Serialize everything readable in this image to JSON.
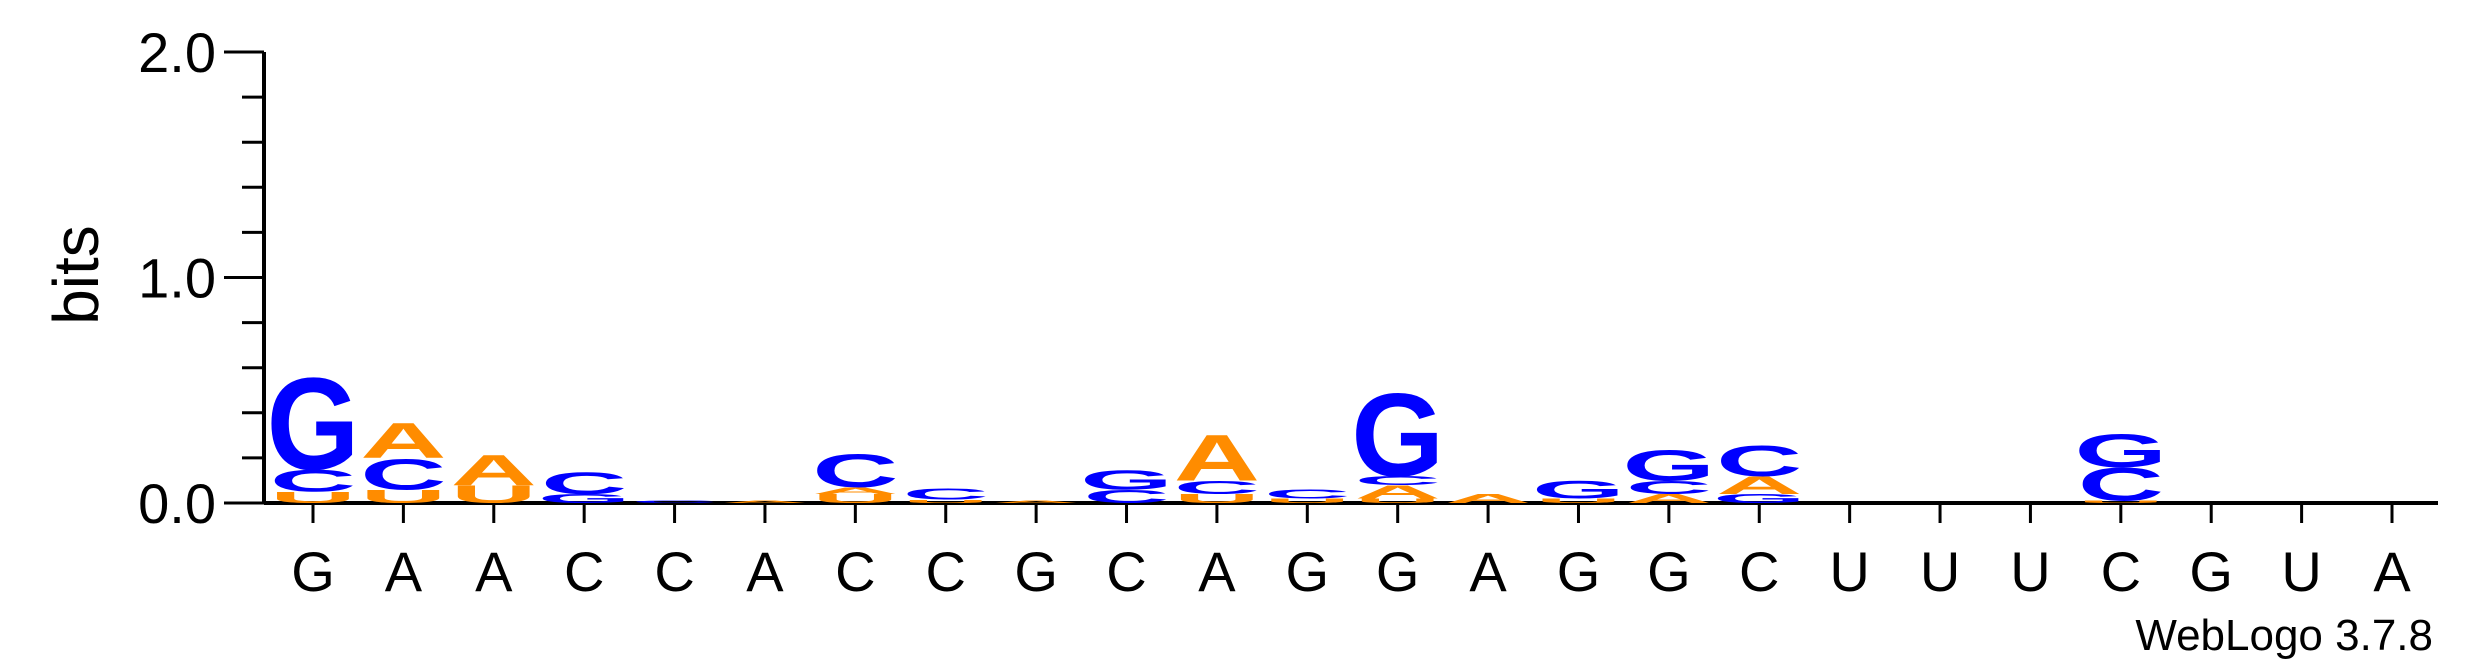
{
  "chart_data": {
    "type": "sequence-logo",
    "ylabel": "bits",
    "ylim": [
      0,
      2.0
    ],
    "yticks": [
      "0.0",
      "1.0",
      "2.0"
    ],
    "sequence": [
      "G",
      "A",
      "A",
      "C",
      "C",
      "A",
      "C",
      "C",
      "G",
      "C",
      "A",
      "G",
      "G",
      "A",
      "G",
      "G",
      "C",
      "U",
      "U",
      "U",
      "C",
      "G",
      "U",
      "A"
    ],
    "colors": {
      "A": "#ff8c00",
      "C": "#0000ff",
      "G": "#0000ff",
      "U": "#ff8c00"
    },
    "stacks": [
      [
        {
          "l": "U",
          "h": 0.05
        },
        {
          "l": "C",
          "h": 0.1
        },
        {
          "l": "G",
          "h": 0.42
        }
      ],
      [
        {
          "l": "U",
          "h": 0.06
        },
        {
          "l": "C",
          "h": 0.14
        },
        {
          "l": "A",
          "h": 0.16
        }
      ],
      [
        {
          "l": "U",
          "h": 0.08
        },
        {
          "l": "A",
          "h": 0.14
        }
      ],
      [
        {
          "l": "G",
          "h": 0.04
        },
        {
          "l": "C",
          "h": 0.1
        }
      ],
      [
        {
          "l": "C",
          "h": 0.01
        }
      ],
      [
        {
          "l": "A",
          "h": 0.01
        }
      ],
      [
        {
          "l": "U",
          "h": 0.04
        },
        {
          "l": "A",
          "h": 0.03
        },
        {
          "l": "C",
          "h": 0.15
        }
      ],
      [
        {
          "l": "U",
          "h": 0.015
        },
        {
          "l": "C",
          "h": 0.05
        }
      ],
      [
        {
          "l": "A",
          "h": 0.01
        }
      ],
      [
        {
          "l": "C",
          "h": 0.06
        },
        {
          "l": "G",
          "h": 0.09
        }
      ],
      [
        {
          "l": "U",
          "h": 0.04
        },
        {
          "l": "C",
          "h": 0.06
        },
        {
          "l": "A",
          "h": 0.21
        }
      ],
      [
        {
          "l": "U",
          "h": 0.02
        },
        {
          "l": "C",
          "h": 0.04
        }
      ],
      [
        {
          "l": "U",
          "h": 0.02
        },
        {
          "l": "A",
          "h": 0.06
        },
        {
          "l": "C",
          "h": 0.04
        },
        {
          "l": "G",
          "h": 0.38
        }
      ],
      [
        {
          "l": "A",
          "h": 0.04
        }
      ],
      [
        {
          "l": "U",
          "h": 0.02
        },
        {
          "l": "G",
          "h": 0.08
        }
      ],
      [
        {
          "l": "A",
          "h": 0.04
        },
        {
          "l": "C",
          "h": 0.06
        },
        {
          "l": "G",
          "h": 0.14
        }
      ],
      [
        {
          "l": "G",
          "h": 0.04
        },
        {
          "l": "A",
          "h": 0.08
        },
        {
          "l": "C",
          "h": 0.14
        }
      ],
      [],
      [],
      [],
      [
        {
          "l": "U",
          "h": 0.01
        },
        {
          "l": "C",
          "h": 0.15
        },
        {
          "l": "G",
          "h": 0.15
        }
      ],
      [],
      [],
      []
    ],
    "credit": "WebLogo 3.7.8"
  }
}
